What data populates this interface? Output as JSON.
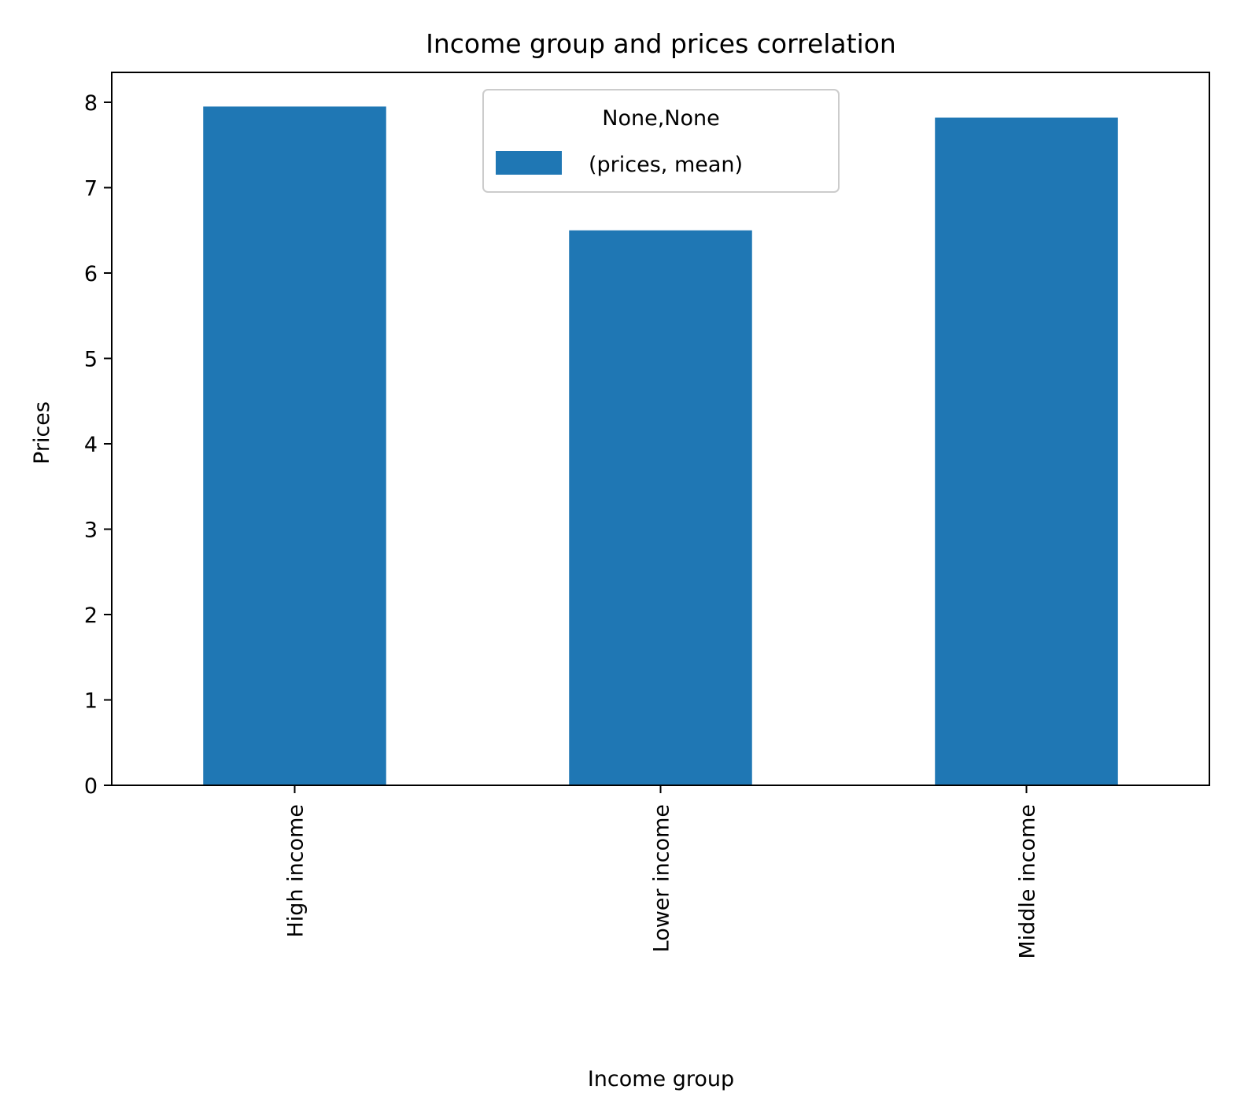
{
  "chart_data": {
    "type": "bar",
    "title": "Income group and prices correlation",
    "xlabel": "Income group",
    "ylabel": "Prices",
    "categories": [
      "High income",
      "Lower income",
      "Middle income"
    ],
    "series": [
      {
        "name": "(prices, mean)",
        "values": [
          7.95,
          6.5,
          7.82
        ],
        "color": "#1f77b4"
      }
    ],
    "ylim": [
      0,
      8.35
    ],
    "yticks": [
      "0",
      "1",
      "2",
      "3",
      "4",
      "5",
      "6",
      "7",
      "8"
    ],
    "legend": {
      "title": "None,None",
      "position": "top-center"
    },
    "grid": false
  }
}
